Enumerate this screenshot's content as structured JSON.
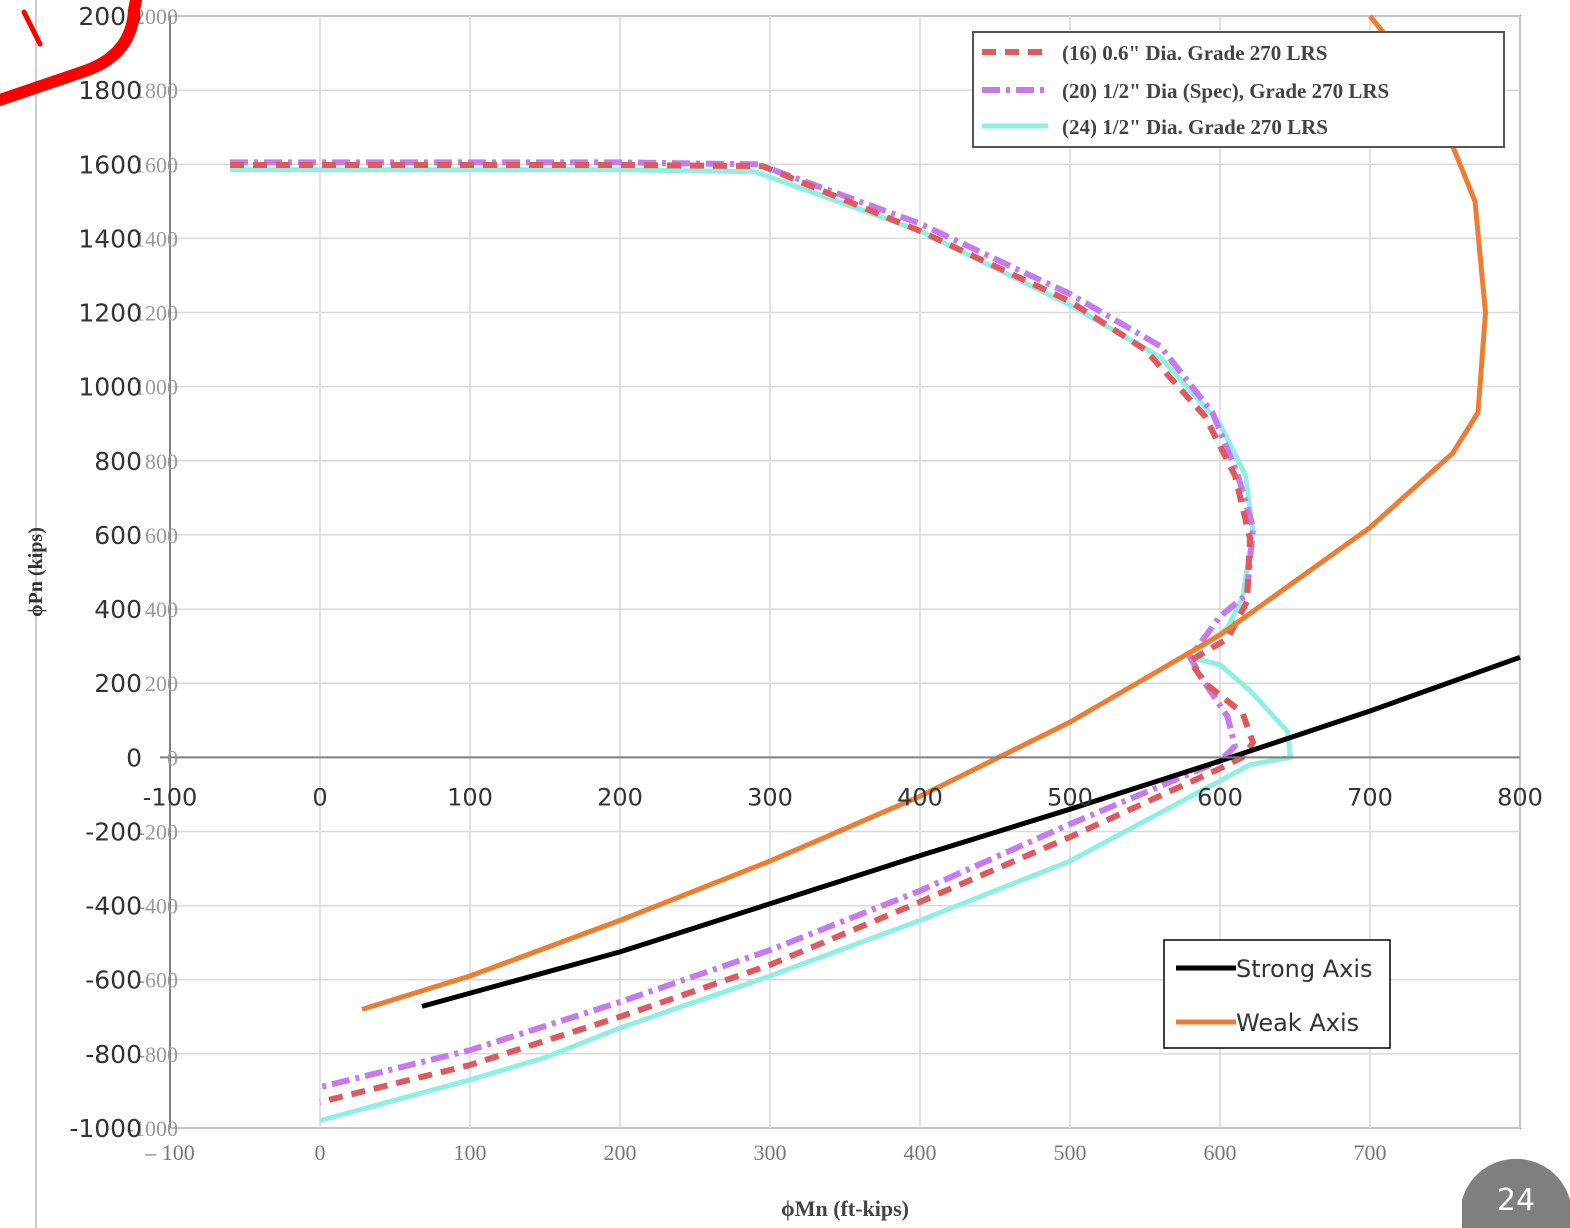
{
  "slide": {
    "page_number": "24"
  },
  "colors": {
    "red_dashed": "#de5a5e",
    "purple_dashdot": "#c77af0",
    "cyan_solid": "#8ff0e2",
    "strong_axis": "#000000",
    "weak_axis": "#ed7d31",
    "annotation_red": "#ff0000",
    "badge_bg": "#7f7f7f",
    "grid": "#d9d9d9"
  },
  "chart_data": [
    {
      "type": "line",
      "description_role": "underlying interaction diagram (image)",
      "xlabel": "ϕMn (ft-kips)",
      "ylabel": "ϕPn (kips)",
      "xlim": [
        -100,
        800
      ],
      "ylim": [
        -1000,
        2000
      ],
      "x_ticks": [
        "– 100",
        "0",
        "100",
        "200",
        "300",
        "400",
        "500",
        "600",
        "700"
      ],
      "y_ticks": [
        "-1000",
        "-800",
        "-600",
        "-400",
        "-200",
        "0",
        "200",
        "400",
        "600",
        "800",
        "1000",
        "1200",
        "1400",
        "1600",
        "1800",
        "2000"
      ],
      "grid": true,
      "legend_position": "top-right",
      "series": [
        {
          "name": "(16) 0.6\" Dia. Grade 270 LRS",
          "style": "dashed",
          "x": [
            -60,
            100,
            200,
            295,
            400,
            500,
            550,
            590,
            610,
            620,
            618,
            605,
            580,
            590,
            615,
            622,
            615,
            600,
            500,
            400,
            300,
            200,
            100,
            0
          ],
          "y": [
            1598,
            1598,
            1598,
            1595,
            1420,
            1230,
            1100,
            920,
            760,
            590,
            420,
            320,
            260,
            200,
            120,
            40,
            0,
            -30,
            -215,
            -390,
            -560,
            -700,
            -830,
            -930
          ]
        },
        {
          "name": "(20) 1/2\" Dia (Spec), Grade 270 LRS",
          "style": "dashdot",
          "x": [
            -60,
            100,
            200,
            292,
            400,
            500,
            560,
            595,
            612,
            622,
            618,
            600,
            580,
            590,
            605,
            610,
            600,
            500,
            400,
            300,
            200,
            100,
            0
          ],
          "y": [
            1605,
            1605,
            1605,
            1600,
            1440,
            1250,
            1110,
            930,
            760,
            620,
            440,
            380,
            270,
            200,
            110,
            30,
            -10,
            -180,
            -360,
            -520,
            -660,
            -790,
            -890
          ]
        },
        {
          "name": "(24) 1/2\" Dia. Grade 270 LRS",
          "style": "solid",
          "x": [
            -60,
            0,
            100,
            200,
            290,
            400,
            500,
            560,
            600,
            617,
            622,
            615,
            605,
            580,
            600,
            620,
            645,
            647,
            620,
            500,
            400,
            300,
            200,
            150,
            100,
            0
          ],
          "y": [
            1585,
            1585,
            1585,
            1585,
            1580,
            1420,
            1220,
            1080,
            900,
            760,
            610,
            430,
            350,
            270,
            250,
            180,
            70,
            0,
            -20,
            -280,
            -440,
            -590,
            -730,
            -810,
            -870,
            -980
          ]
        }
      ]
    },
    {
      "type": "line",
      "description_role": "overlaid strong/weak axis curves",
      "xlim": [
        -100,
        800
      ],
      "ylim": [
        -1000,
        2000
      ],
      "x_ticks": [
        "-100",
        "0",
        "100",
        "200",
        "300",
        "400",
        "500",
        "600",
        "700",
        "800"
      ],
      "y_ticks": [
        "-1000",
        "-800",
        "-600",
        "-400",
        "-200",
        "0",
        "200",
        "400",
        "600",
        "800",
        "1000",
        "1200",
        "1400",
        "1600",
        "1800",
        "2000"
      ],
      "legend_position": "bottom-right",
      "series": [
        {
          "name": "Strong Axis",
          "x": [
            68,
            200,
            300,
            400,
            500,
            600,
            700,
            800
          ],
          "y": [
            -672,
            -525,
            -395,
            -265,
            -140,
            -10,
            125,
            270
          ]
        },
        {
          "name": "Weak Axis",
          "x": [
            28,
            100,
            200,
            300,
            400,
            500,
            600,
            700,
            755,
            772,
            777,
            770,
            740,
            700
          ],
          "y": [
            -680,
            -590,
            -440,
            -280,
            -105,
            95,
            330,
            620,
            820,
            930,
            1200,
            1500,
            1800,
            2000
          ]
        }
      ]
    }
  ]
}
